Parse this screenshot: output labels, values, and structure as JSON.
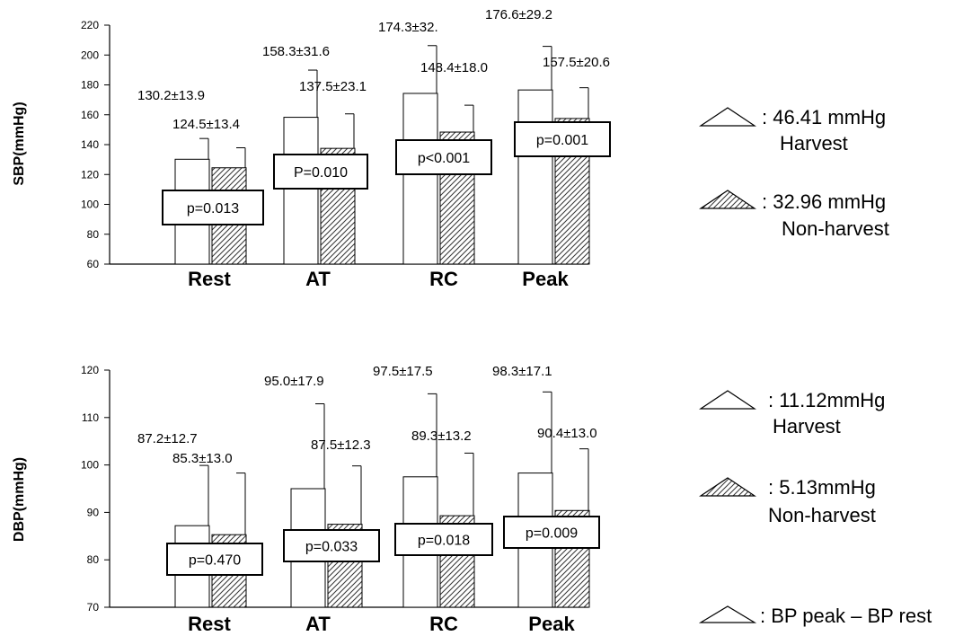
{
  "chart_data": [
    {
      "type": "bar",
      "ylabel": "SBP(mmHg)",
      "ylim": [
        60,
        220
      ],
      "yticks": [
        60,
        80,
        100,
        120,
        140,
        160,
        180,
        200,
        220
      ],
      "grid": false,
      "categories": [
        "Rest",
        "AT",
        "RC",
        "Peak"
      ],
      "series": [
        {
          "name": "Harvest",
          "values": [
            130.2,
            158.3,
            174.3,
            176.6
          ],
          "sd": [
            13.9,
            31.6,
            32.0,
            29.2
          ],
          "labels": [
            "130.2±13.9",
            "158.3±31.6",
            "174.3±32.",
            "176.6±29.2"
          ]
        },
        {
          "name": "Non-harvest",
          "values": [
            124.5,
            137.5,
            148.4,
            157.5
          ],
          "sd": [
            13.4,
            23.1,
            18.0,
            20.6
          ],
          "labels": [
            "124.5±13.4",
            "137.5±23.1",
            "148.4±18.0",
            "157.5±20.6"
          ]
        }
      ],
      "p_values": [
        "p=0.013",
        "P=0.010",
        "p<0.001",
        "p=0.001"
      ],
      "legend": {
        "position": "right",
        "items": [
          {
            "fill": "white",
            "value": ": 46.41 mmHg",
            "label": "Harvest"
          },
          {
            "fill": "hatched",
            "value": ": 32.96 mmHg",
            "label": "Non-harvest"
          }
        ]
      }
    },
    {
      "type": "bar",
      "ylabel": "DBP(mmHg)",
      "ylim": [
        70,
        120
      ],
      "yticks": [
        70,
        80,
        90,
        100,
        110,
        120
      ],
      "grid": false,
      "categories": [
        "Rest",
        "AT",
        "RC",
        "Peak"
      ],
      "series": [
        {
          "name": "Harvest",
          "values": [
            87.2,
            95.0,
            97.5,
            98.3
          ],
          "sd": [
            12.7,
            17.9,
            17.5,
            17.1
          ],
          "labels": [
            "87.2±12.7",
            "95.0±17.9",
            "97.5±17.5",
            "98.3±17.1"
          ]
        },
        {
          "name": "Non-harvest",
          "values": [
            85.3,
            87.5,
            89.3,
            90.4
          ],
          "sd": [
            13.0,
            12.3,
            13.2,
            13.0
          ],
          "labels": [
            "85.3±13.0",
            "87.5±12.3",
            "89.3±13.2",
            "90.4±13.0"
          ]
        }
      ],
      "p_values": [
        "p=0.470",
        "p=0.033",
        "p=0.018",
        "p=0.009"
      ],
      "legend": {
        "position": "right",
        "items": [
          {
            "fill": "white",
            "value": ": 11.12mmHg",
            "label": "Harvest"
          },
          {
            "fill": "hatched",
            "value": ": 5.13mmHg",
            "label": "Non-harvest"
          }
        ]
      }
    }
  ],
  "footnote": {
    "text": ": BP peak – BP rest"
  }
}
